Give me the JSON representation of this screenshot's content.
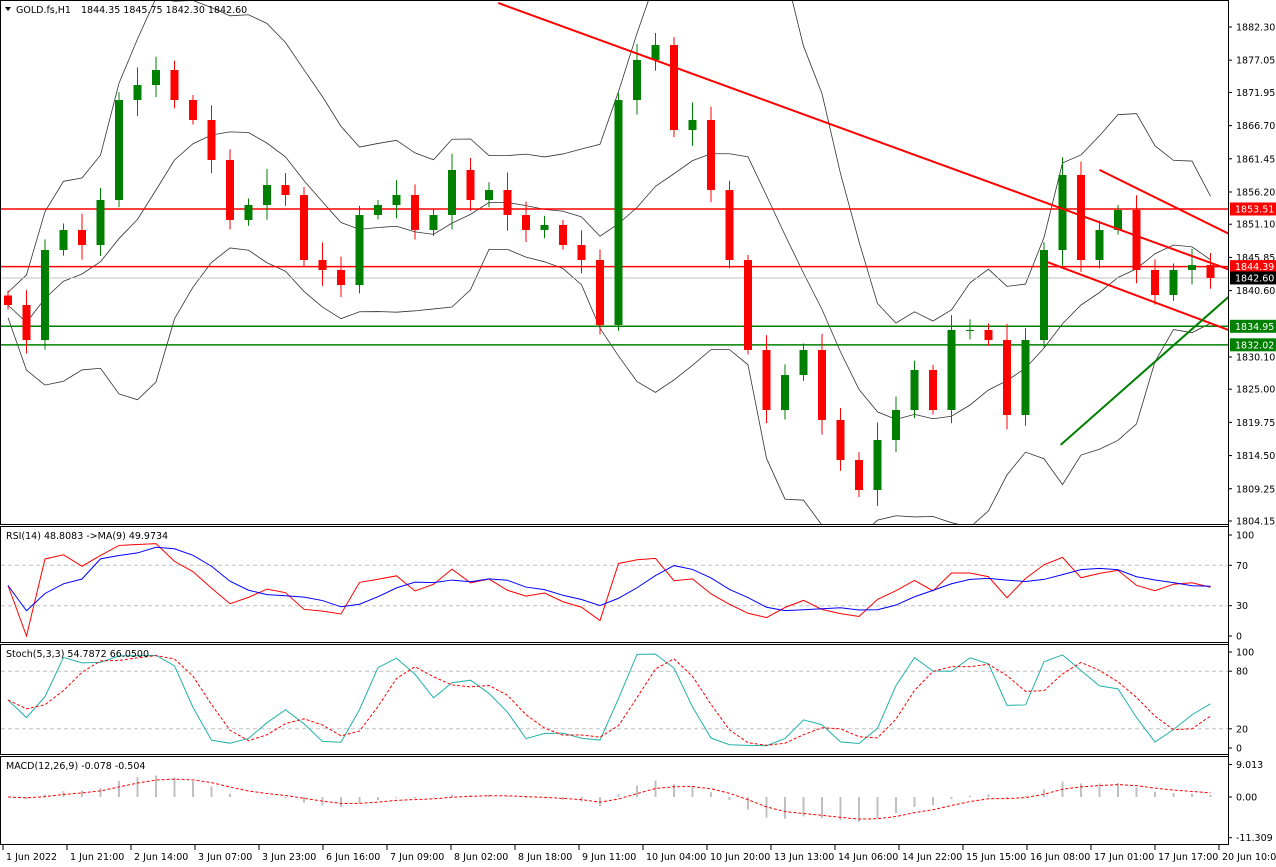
{
  "header": {
    "symbol_label": "GOLD.fs,H1",
    "ohlc": "1844.35 1845.75 1842.30 1842.60"
  },
  "colors": {
    "up": "#008000",
    "down": "#ff0000",
    "bands": "#333333",
    "rsi": "#ff0000",
    "rsi_ma": "#0000ff",
    "stoch_main": "#20b2aa",
    "stoch_signal": "#ff0000",
    "macd_hist": "#c0c0c0",
    "macd_signal": "#ff0000"
  },
  "chart_data": {
    "type": "candlestick",
    "symbol": "GOLD.fs",
    "timeframe": "H1",
    "closes": [
      1838.32,
      1832.78,
      1847.02,
      1850.19,
      1847.81,
      1854.93,
      1870.75,
      1873.12,
      1875.5,
      1870.75,
      1867.59,
      1861.26,
      1851.77,
      1854.14,
      1857.3,
      1855.72,
      1845.44,
      1843.86,
      1841.48,
      1852.56,
      1854.14,
      1855.72,
      1850.19,
      1852.56,
      1859.68,
      1854.93,
      1856.51,
      1852.56,
      1850.19,
      1850.98,
      1847.81,
      1845.44,
      1835.16,
      1870.75,
      1877.08,
      1879.45,
      1866.0,
      1867.59,
      1856.51,
      1845.44,
      1831.2,
      1821.71,
      1827.24,
      1831.2,
      1820.13,
      1813.8,
      1809.05,
      1816.96,
      1821.71,
      1828.04,
      1821.71,
      1834.37,
      1834.37,
      1832.78,
      1820.92,
      1832.78,
      1847.02,
      1858.89,
      1845.44,
      1850.19,
      1853.35,
      1843.86,
      1839.9,
      1843.86,
      1844.65,
      1842.6
    ],
    "ylim": [
      1804.15,
      1882.3
    ],
    "y_ticks": [
      "1882.30",
      "1877.05",
      "1871.95",
      "1866.70",
      "1861.45",
      "1856.20",
      "1851.10",
      "1845.85",
      "1840.60",
      "1830.10",
      "1825.00",
      "1819.75",
      "1814.50",
      "1809.25",
      "1804.15"
    ],
    "x_ticks": [
      "1 Jun 2022",
      "1 Jun 21:00",
      "2 Jun 14:00",
      "3 Jun 07:00",
      "3 Jun 23:00",
      "6 Jun 16:00",
      "7 Jun 09:00",
      "8 Jun 02:00",
      "8 Jun 18:00",
      "9 Jun 11:00",
      "10 Jun 04:00",
      "10 Jun 20:00",
      "13 Jun 13:00",
      "14 Jun 06:00",
      "14 Jun 22:00",
      "15 Jun 15:00",
      "16 Jun 08:00",
      "17 Jun 01:00",
      "17 Jun 17:00",
      "20 Jun 10:00"
    ],
    "horizontal_levels": [
      {
        "price": 1853.51,
        "label": "1853.51",
        "color": "#ff0000"
      },
      {
        "price": 1844.39,
        "label": "1844.39",
        "color": "#ff0000"
      },
      {
        "price": 1834.95,
        "label": "1834.95",
        "color": "#008000"
      },
      {
        "price": 1832.02,
        "label": "1832.02",
        "color": "#008000"
      }
    ],
    "current_price": {
      "price": 1842.6,
      "label": "1842.60",
      "color": "#000000"
    },
    "trendlines": [
      {
        "color": "#ff0000",
        "from": [
          26.5,
          1886.1
        ],
        "to": [
          66.4,
          1843.5
        ]
      },
      {
        "color": "#ff0000",
        "from": [
          59.0,
          1859.7
        ],
        "to": [
          66.4,
          1849.0
        ]
      },
      {
        "color": "#ff0000",
        "from": [
          56.2,
          1845.1
        ],
        "to": [
          66.4,
          1833.9
        ]
      },
      {
        "color": "#008000",
        "from": [
          56.9,
          1816.2
        ],
        "to": [
          66.4,
          1840.7
        ]
      }
    ],
    "indicators": {
      "rsi": {
        "label": "RSI(14) 48.8083  ->MA(9) 49.9734",
        "ticks": [
          "100",
          "70",
          "30",
          "0"
        ],
        "levels": [
          30,
          70
        ],
        "range": [
          0,
          100
        ]
      },
      "stoch": {
        "label": "Stoch(5,3,3) 54.7872 66.0500",
        "ticks": [
          "100",
          "80",
          "20",
          "0"
        ],
        "levels": [
          20,
          80
        ],
        "range": [
          0,
          100
        ]
      },
      "macd": {
        "label": "MACD(12,26,9) -0.078 -0.504",
        "ticks": [
          "9.013",
          "0.00",
          "-11.309"
        ],
        "range": [
          -11.309,
          9.013
        ]
      }
    }
  }
}
